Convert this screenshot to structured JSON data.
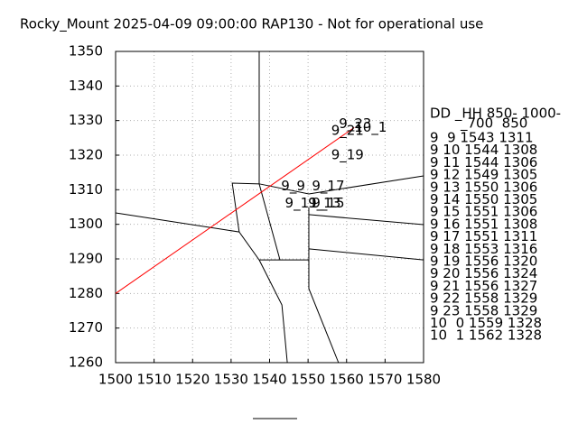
{
  "chart_data": {
    "type": "line",
    "title": "Rocky_Mount 2025-04-09 09:00:00 RAP130 - Not for operational use",
    "xlim": [
      1500,
      1580
    ],
    "ylim": [
      1260,
      1350
    ],
    "xticks": [
      1500,
      1510,
      1520,
      1530,
      1540,
      1550,
      1560,
      1570,
      1580
    ],
    "yticks": [
      1260,
      1270,
      1280,
      1290,
      1300,
      1310,
      1320,
      1330,
      1340,
      1350
    ],
    "grid": true,
    "series": [
      {
        "color": "#ff0000",
        "x": [
          1500,
          1562
        ],
        "y": [
          1280,
          1328
        ]
      }
    ],
    "boundaries": {
      "color": "#000000",
      "lines": [
        {
          "x": [
            1537.3,
            1537.3
          ],
          "y": [
            1350,
            1311.7
          ]
        },
        {
          "x": [
            1500,
            1532.1,
            1537.3,
            1550.2
          ],
          "y": [
            1303.3,
            1297.8,
            1289.7,
            1289.7
          ]
        },
        {
          "x": [
            1532.1,
            1530.3,
            1537.3,
            1542.7
          ],
          "y": [
            1297.8,
            1311.9,
            1311.7,
            1289.7
          ]
        },
        {
          "x": [
            1537.3,
            1550.2,
            1580
          ],
          "y": [
            1311.7,
            1308.8,
            1314.0
          ]
        },
        {
          "x": [
            1550.2,
            1580
          ],
          "y": [
            1302.8,
            1299.9
          ]
        },
        {
          "x": [
            1550.2,
            1550.2,
            1550.2,
            1557.9
          ],
          "y": [
            1304.9,
            1289.7,
            1281.4,
            1260
          ]
        },
        {
          "x": [
            1550.2,
            1580
          ],
          "y": [
            1292.9,
            1289.7
          ]
        },
        {
          "x": [
            1537.3,
            1543.2,
            1544.6
          ],
          "y": [
            1289.7,
            1276.7,
            1260
          ]
        }
      ]
    },
    "annotations": [
      {
        "text": "9_9",
        "x": 1543,
        "y": 1311
      },
      {
        "text": "9_11",
        "x": 1544,
        "y": 1306
      },
      {
        "text": "9_13",
        "x": 1550,
        "y": 1306
      },
      {
        "text": "9_15",
        "x": 1551,
        "y": 1306
      },
      {
        "text": "9_17",
        "x": 1551,
        "y": 1311
      },
      {
        "text": "9_19",
        "x": 1556,
        "y": 1320
      },
      {
        "text": "9_21",
        "x": 1556,
        "y": 1327
      },
      {
        "text": "9_23",
        "x": 1558,
        "y": 1329
      },
      {
        "text": "10_1",
        "x": 1562,
        "y": 1328
      }
    ],
    "side_table": {
      "header": [
        "DD _HH 850- 1000-",
        "_700  850"
      ],
      "rows": [
        "9  9 1543 1311",
        "9 10 1544 1308",
        "9 11 1544 1306",
        "9 12 1549 1305",
        "9 13 1550 1306",
        "9 14 1550 1305",
        "9 15 1551 1306",
        "9 16 1551 1308",
        "9 17 1551 1311",
        "9 18 1553 1316",
        "9 19 1556 1320",
        "9 20 1556 1324",
        "9 21 1556 1327",
        "9 22 1558 1329",
        "9 23 1558 1329",
        "10  0 1559 1328",
        "10  1 1562 1328"
      ]
    }
  }
}
